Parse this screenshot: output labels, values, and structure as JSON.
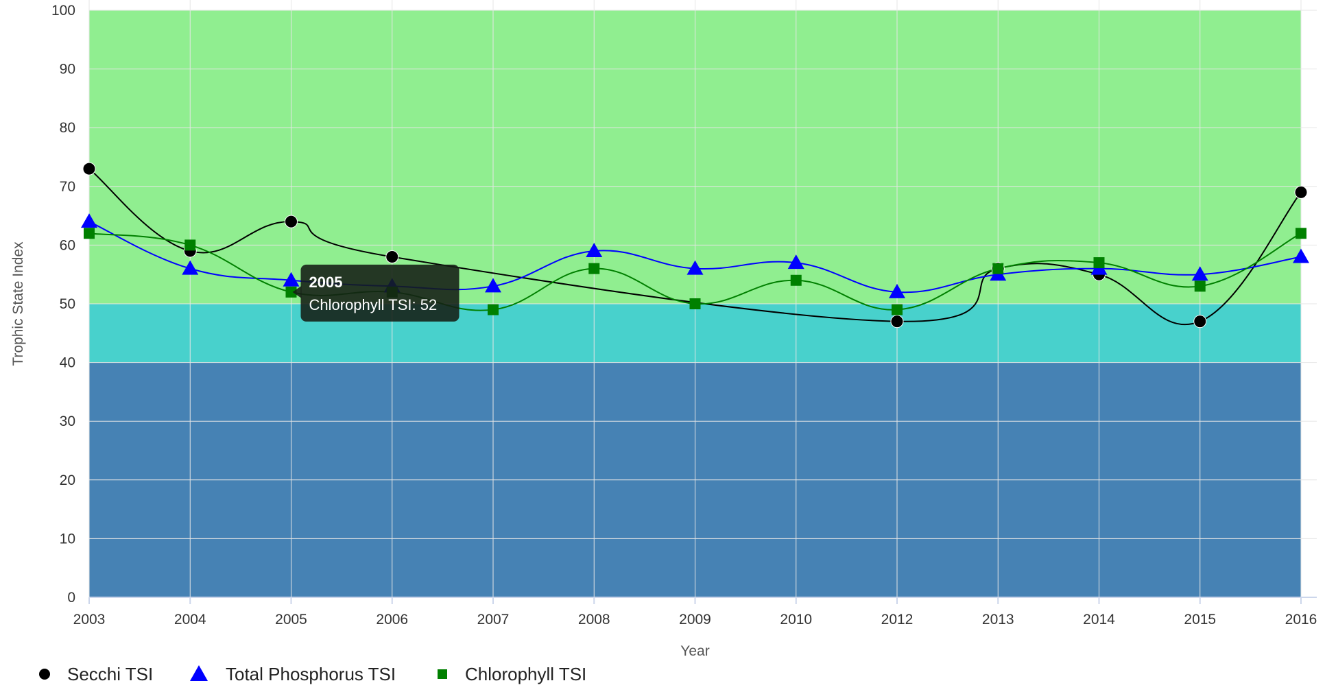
{
  "chart_data": {
    "type": "line",
    "title": "",
    "xlabel": "Year",
    "ylabel": "Trophic State Index",
    "categories": [
      "2003",
      "2004",
      "2005",
      "2006",
      "2007",
      "2008",
      "2009",
      "2010",
      "2012",
      "2013",
      "2014",
      "2015",
      "2016"
    ],
    "ylim": [
      0,
      100
    ],
    "yticks": [
      0,
      10,
      20,
      30,
      40,
      50,
      60,
      70,
      80,
      90,
      100
    ],
    "grid": true,
    "legend": "bottom-left",
    "bands": [
      {
        "from": 0,
        "to": 40,
        "color": "#4682b4"
      },
      {
        "from": 40,
        "to": 50,
        "color": "#48d1cc"
      },
      {
        "from": 50,
        "to": 100,
        "color": "#90ee90"
      }
    ],
    "series": [
      {
        "name": "Secchi TSI",
        "marker": "circle",
        "color": "#000000",
        "values": [
          73,
          59,
          64,
          58,
          null,
          null,
          null,
          null,
          47,
          56,
          55,
          47,
          69
        ]
      },
      {
        "name": "Total Phosphorus TSI",
        "marker": "triangle",
        "color": "#0000ff",
        "values": [
          64,
          56,
          54,
          53,
          53,
          59,
          56,
          57,
          52,
          55,
          56,
          55,
          58
        ]
      },
      {
        "name": "Chlorophyll TSI",
        "marker": "square",
        "color": "#008000",
        "values": [
          62,
          60,
          52,
          52,
          49,
          56,
          50,
          54,
          49,
          56,
          57,
          53,
          62
        ]
      }
    ],
    "tooltip": {
      "title": "2005",
      "text": "Chlorophyll TSI: 52",
      "category_index": 2,
      "series_index": 2
    }
  }
}
